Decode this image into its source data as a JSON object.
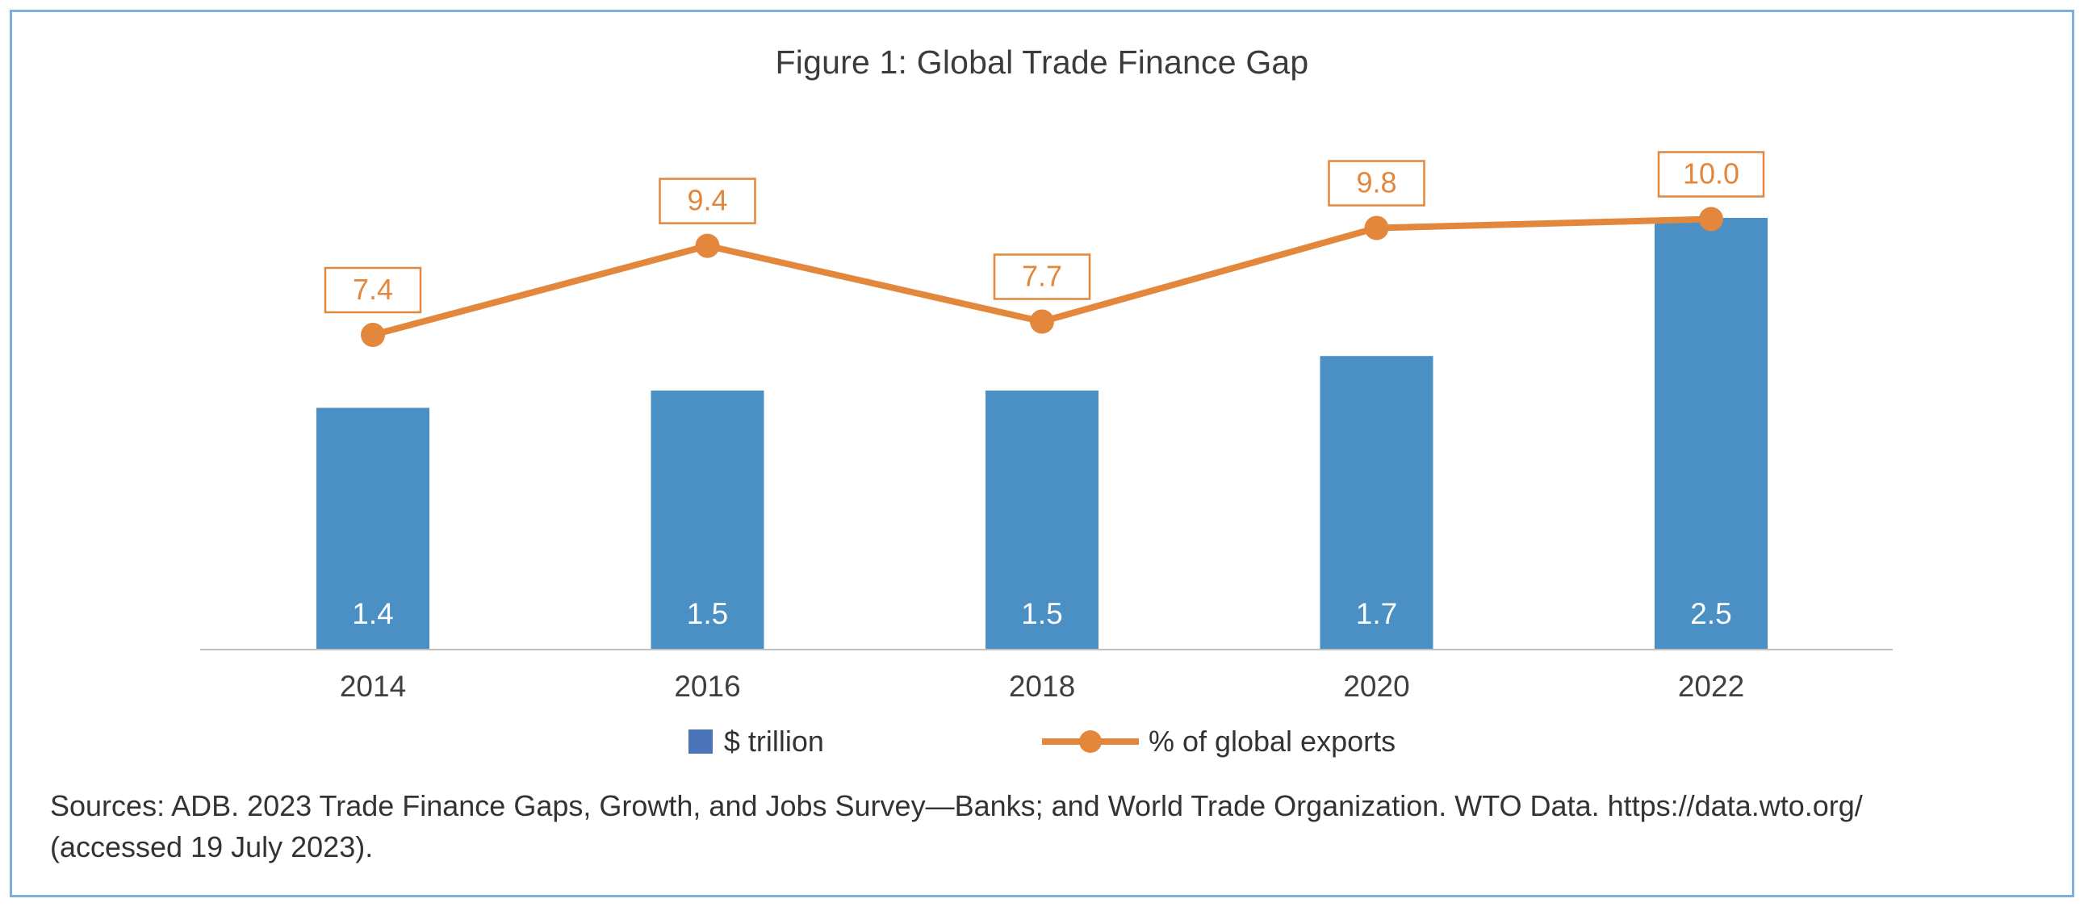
{
  "title": "Figure 1: Global Trade Finance Gap",
  "colors": {
    "bar_blue": "#4A90C4",
    "legend_blue": "#4C74B9",
    "line_orange": "#E2873B",
    "border_blue": "#7FAFD9",
    "axis_gray": "#BFBFBF"
  },
  "chart_data": {
    "type": "bar",
    "subtype": "combo-bar-line",
    "title": "Figure 1: Global Trade Finance Gap",
    "categories": [
      "2014",
      "2016",
      "2018",
      "2020",
      "2022"
    ],
    "series": [
      {
        "name": "$ trillion",
        "type": "bar",
        "values": [
          1.4,
          1.5,
          1.5,
          1.7,
          2.5
        ],
        "data_labels": [
          "1.4",
          "1.5",
          "1.5",
          "1.7",
          "2.5"
        ],
        "color": "#4A90C4"
      },
      {
        "name": "% of global exports",
        "type": "line",
        "values": [
          7.4,
          9.4,
          7.7,
          9.8,
          10.0
        ],
        "data_labels": [
          "7.4",
          "9.4",
          "7.7",
          "9.8",
          "10.0"
        ],
        "color": "#E2873B"
      }
    ],
    "xlabel": "",
    "ylabel": "",
    "axes_hidden": true,
    "grid": false,
    "legend_position": "bottom",
    "data_labels": true
  },
  "legend": {
    "bar_label": "$ trillion",
    "line_label": "% of global exports"
  },
  "sources": {
    "line1": "Sources: ADB. 2023 Trade Finance Gaps, Growth, and Jobs Survey—Banks; and World Trade Organization. WTO Data. https://data.wto.org/",
    "line2": "(accessed 19 July 2023)."
  }
}
